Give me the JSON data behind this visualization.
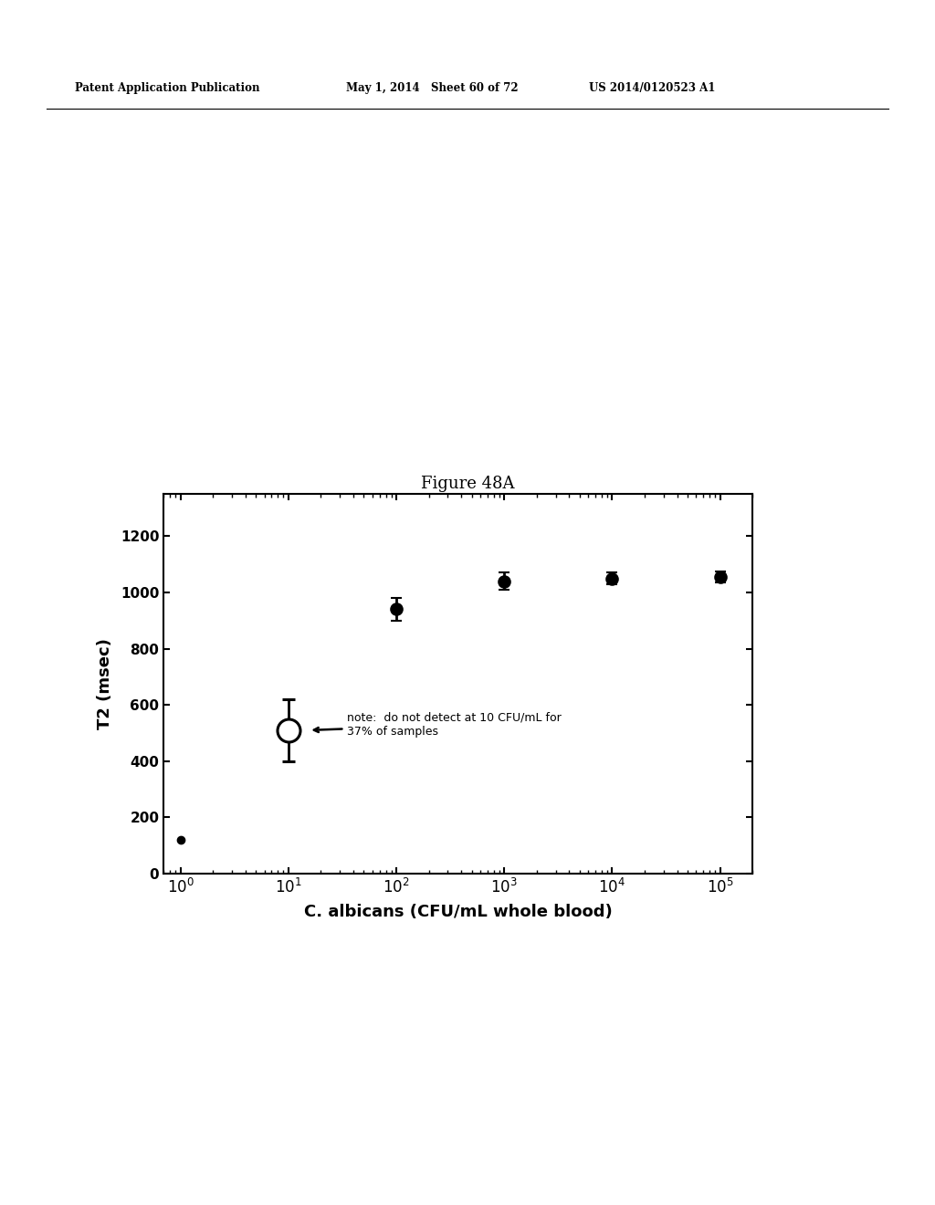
{
  "title": "Figure 48A",
  "xlabel": "C. albicans (CFU/mL whole blood)",
  "ylabel": "T2 (msec)",
  "header_left": "Patent Application Publication",
  "header_mid": "May 1, 2014   Sheet 60 of 72",
  "header_right": "US 2014/0120523 A1",
  "x_values": [
    1,
    10,
    100,
    1000,
    10000,
    100000
  ],
  "y_values": [
    120,
    510,
    940,
    1040,
    1050,
    1055
  ],
  "y_errors": [
    0,
    110,
    40,
    30,
    20,
    20
  ],
  "open_circle_index": 1,
  "annotation_text": "note:  do not detect at 10 CFU/mL for\n37% of samples",
  "xlim": [
    0.7,
    200000
  ],
  "ylim": [
    0,
    1350
  ],
  "yticks": [
    0,
    200,
    400,
    600,
    800,
    1000,
    1200
  ],
  "background_color": "#ffffff",
  "plot_background": "#ffffff",
  "marker_color": "#000000",
  "figure_color": "#ffffff"
}
